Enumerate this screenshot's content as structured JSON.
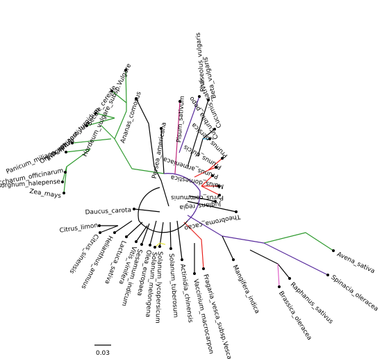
{
  "colors": {
    "default": "#000000",
    "green": "#2e9a2e",
    "red": "#e8201c",
    "purple": "#5a2d9e",
    "magenta": "#c0257a",
    "blue": "#3aa8e0",
    "pink": "#e060c8",
    "yellow": "#e6e640"
  },
  "scale_bar": {
    "label": "0.03"
  },
  "leaves": [
    {
      "id": "hordeum",
      "label": "Hordeum_vulgare_subsp.Vulgare"
    },
    {
      "id": "secale",
      "label": "Secale_cereale"
    },
    {
      "id": "triticum_turg",
      "label": "Triticum_turgidum"
    },
    {
      "id": "triticum_aest",
      "label": "Triticum_aestivum"
    },
    {
      "id": "oryza",
      "label": "Oryza_sativa"
    },
    {
      "id": "panicum",
      "label": "Panicum_miliaceum"
    },
    {
      "id": "saccharum",
      "label": "Saccharum_officinarum"
    },
    {
      "id": "sorghum",
      "label": "Sorghum_halepense"
    },
    {
      "id": "zea",
      "label": "Zea_mays"
    },
    {
      "id": "ananas",
      "label": "Ananas_comosus"
    },
    {
      "id": "persea",
      "label": "Persea_americana"
    },
    {
      "id": "pisum",
      "label": "Pisum_sativum"
    },
    {
      "id": "phaseolus",
      "label": "Phaseolus_vulgaris"
    },
    {
      "id": "beta",
      "label": "Beta_vulgaris"
    },
    {
      "id": "cucumis",
      "label": "Cucumis_sativus"
    },
    {
      "id": "cucurbita",
      "label": "Cucurbita_pepo"
    },
    {
      "id": "prunus_persica",
      "label": "Prunus_persica"
    },
    {
      "id": "prunus_dulcis",
      "label": "Prunus_dulcis"
    },
    {
      "id": "prunus_arm",
      "label": "Prunus_armeniaca"
    },
    {
      "id": "malus",
      "label": "Malus_domestica"
    },
    {
      "id": "pyrus",
      "label": "Pyrus_communis"
    },
    {
      "id": "juglans",
      "label": "Juglans_regia"
    },
    {
      "id": "theobroma",
      "label": "Theobroma_cacao"
    },
    {
      "id": "avena",
      "label": "Avena_sativa"
    },
    {
      "id": "spinacia",
      "label": "Spinacia_oleracea"
    },
    {
      "id": "raphanus",
      "label": "Raphanus_sativus"
    },
    {
      "id": "brassica",
      "label": "Brassica_oleracea"
    },
    {
      "id": "mangifera",
      "label": "Mangifera_indica"
    },
    {
      "id": "fragaria",
      "label": "Fragaria_vesca_subsp.Vesca"
    },
    {
      "id": "vaccinium",
      "label": "Vaccinium_macrocarpon"
    },
    {
      "id": "actinidia",
      "label": "Actinidia_chinensis"
    },
    {
      "id": "solanum_tub",
      "label": "Solanum_tuberosum"
    },
    {
      "id": "solanum_lyc",
      "label": "Solanum_lycopersicum"
    },
    {
      "id": "solanum_mel",
      "label": "Solanum_melongena"
    },
    {
      "id": "olea",
      "label": "Olea_europaea"
    },
    {
      "id": "sesamum",
      "label": "Sesamum_indicum"
    },
    {
      "id": "vitis",
      "label": "Vitis_vinifera"
    },
    {
      "id": "lactuca",
      "label": "Lactuca_sativa"
    },
    {
      "id": "helianthus",
      "label": "Helianthus_annuus"
    },
    {
      "id": "citrus_sin",
      "label": "Citrus_sinensis"
    },
    {
      "id": "citrus_lim",
      "label": "Citrus_limon"
    },
    {
      "id": "daucus",
      "label": "Daucus_carota"
    }
  ]
}
